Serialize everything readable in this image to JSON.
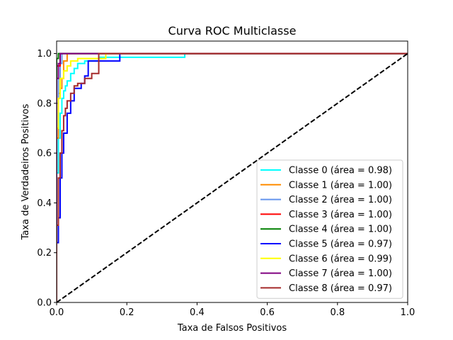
{
  "chart_data": {
    "type": "line",
    "title": "Curva ROC Multiclasse",
    "xlabel": "Taxa de Falsos Positivos",
    "ylabel": "Taxa de Verdadeiros Positivos",
    "xlim": [
      0.0,
      1.0
    ],
    "ylim": [
      0.0,
      1.05
    ],
    "xticks": [
      "0.0",
      "0.2",
      "0.4",
      "0.6",
      "0.8",
      "1.0"
    ],
    "yticks": [
      "0.0",
      "0.2",
      "0.4",
      "0.6",
      "0.8",
      "1.0"
    ],
    "legend_position": "lower-right",
    "grid": false,
    "reference_line": {
      "style": "dashed",
      "color": "#000000",
      "x": [
        0,
        1
      ],
      "y": [
        0,
        1
      ]
    },
    "series": [
      {
        "name": "Classe 0 (área = 0.98)",
        "color": "#00ffff",
        "x": [
          0,
          0,
          0.005,
          0.005,
          0.01,
          0.01,
          0.015,
          0.015,
          0.02,
          0.02,
          0.025,
          0.025,
          0.03,
          0.03,
          0.04,
          0.04,
          0.05,
          0.05,
          0.06,
          0.06,
          0.08,
          0.08,
          0.12,
          0.12,
          0.365,
          0.365,
          1.0
        ],
        "y": [
          0,
          0.52,
          0.52,
          0.66,
          0.66,
          0.76,
          0.76,
          0.82,
          0.82,
          0.85,
          0.85,
          0.87,
          0.87,
          0.89,
          0.89,
          0.92,
          0.92,
          0.94,
          0.94,
          0.96,
          0.96,
          0.97,
          0.97,
          0.985,
          0.985,
          1.0,
          1.0
        ]
      },
      {
        "name": "Classe 1 (área = 1.00)",
        "color": "#ff8c00",
        "x": [
          0,
          0,
          0.005,
          0.005,
          0.01,
          0.01,
          0.015,
          0.015,
          0.02,
          0.02,
          0.03,
          0.03,
          1.0
        ],
        "y": [
          0,
          0.66,
          0.66,
          0.84,
          0.84,
          0.86,
          0.86,
          0.9,
          0.9,
          0.97,
          0.97,
          1.0,
          1.0
        ]
      },
      {
        "name": "Classe 2 (área = 1.00)",
        "color": "#6495ed",
        "x": [
          0,
          0,
          0.005,
          0.005,
          0.01,
          0.01,
          0.015,
          0.015,
          1.0
        ],
        "y": [
          0,
          0.8,
          0.8,
          0.9,
          0.9,
          0.96,
          0.96,
          1.0,
          1.0
        ]
      },
      {
        "name": "Classe 3 (área = 1.00)",
        "color": "#ff0000",
        "x": [
          0,
          0,
          0.01,
          0.01,
          1.0
        ],
        "y": [
          0,
          0.95,
          0.95,
          1.0,
          1.0
        ]
      },
      {
        "name": "Classe 4 (área = 1.00)",
        "color": "#008000",
        "x": [
          0,
          0,
          0.005,
          0.005,
          1.0
        ],
        "y": [
          0,
          0.98,
          0.98,
          1.0,
          1.0
        ]
      },
      {
        "name": "Classe 5 (área = 0.97)",
        "color": "#0000ff",
        "x": [
          0,
          0,
          0.005,
          0.005,
          0.01,
          0.01,
          0.015,
          0.015,
          0.02,
          0.02,
          0.03,
          0.03,
          0.04,
          0.04,
          0.05,
          0.05,
          0.06,
          0.06,
          0.07,
          0.07,
          0.08,
          0.08,
          0.09,
          0.09,
          0.12,
          0.12,
          0.18,
          0.18,
          1.0
        ],
        "y": [
          0,
          0.24,
          0.24,
          0.34,
          0.34,
          0.5,
          0.5,
          0.6,
          0.6,
          0.68,
          0.68,
          0.76,
          0.76,
          0.81,
          0.81,
          0.86,
          0.86,
          0.86,
          0.86,
          0.88,
          0.88,
          0.91,
          0.91,
          0.97,
          0.97,
          0.97,
          0.97,
          1.0,
          1.0
        ]
      },
      {
        "name": "Classe 6 (área = 0.99)",
        "color": "#ffff00",
        "x": [
          0,
          0,
          0.005,
          0.005,
          0.01,
          0.01,
          0.02,
          0.02,
          0.03,
          0.03,
          0.04,
          0.04,
          0.06,
          0.06,
          0.14,
          0.14,
          1.0
        ],
        "y": [
          0,
          0.7,
          0.7,
          0.82,
          0.82,
          0.9,
          0.9,
          0.93,
          0.93,
          0.95,
          0.95,
          0.97,
          0.97,
          0.98,
          0.98,
          1.0,
          1.0
        ]
      },
      {
        "name": "Classe 7 (área = 1.00)",
        "color": "#800080",
        "x": [
          0,
          0,
          0.005,
          0.005,
          0.01,
          0.01,
          1.0
        ],
        "y": [
          0,
          0.9,
          0.9,
          0.96,
          0.96,
          1.0,
          1.0
        ]
      },
      {
        "name": "Classe 8 (área = 0.97)",
        "color": "#a52a2a",
        "x": [
          0,
          0,
          0.005,
          0.005,
          0.01,
          0.01,
          0.015,
          0.015,
          0.02,
          0.02,
          0.025,
          0.025,
          0.03,
          0.03,
          0.04,
          0.04,
          0.05,
          0.05,
          0.06,
          0.06,
          0.08,
          0.08,
          0.1,
          0.1,
          0.12,
          0.12,
          1.0
        ],
        "y": [
          0,
          0.31,
          0.31,
          0.5,
          0.5,
          0.6,
          0.6,
          0.69,
          0.69,
          0.75,
          0.75,
          0.78,
          0.78,
          0.81,
          0.81,
          0.84,
          0.84,
          0.87,
          0.87,
          0.88,
          0.88,
          0.9,
          0.9,
          0.92,
          0.92,
          1.0,
          1.0
        ]
      }
    ]
  }
}
